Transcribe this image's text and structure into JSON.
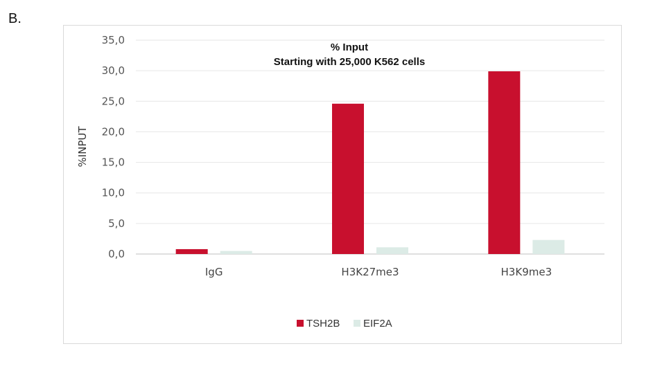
{
  "panel_label": "B.",
  "chart_data": {
    "type": "bar",
    "title": "% Input",
    "subtitle": "Starting with 25,000 K562 cells",
    "ylabel": "%INPUT",
    "xlabel": "",
    "categories": [
      "IgG",
      "H3K27me3",
      "H3K9me3"
    ],
    "series": [
      {
        "name": "TSH2B",
        "color": "#c8102e",
        "values": [
          0.8,
          24.6,
          29.9
        ]
      },
      {
        "name": "EIF2A",
        "color": "#dcebe6",
        "values": [
          0.5,
          1.1,
          2.3
        ]
      }
    ],
    "ylim": [
      0,
      35
    ],
    "yticks": [
      "0,0",
      "5,0",
      "10,0",
      "15,0",
      "20,0",
      "25,0",
      "30,0",
      "35,0"
    ],
    "ytick_values": [
      0,
      5,
      10,
      15,
      20,
      25,
      30,
      35
    ],
    "grid": true,
    "legend": "bottom"
  }
}
